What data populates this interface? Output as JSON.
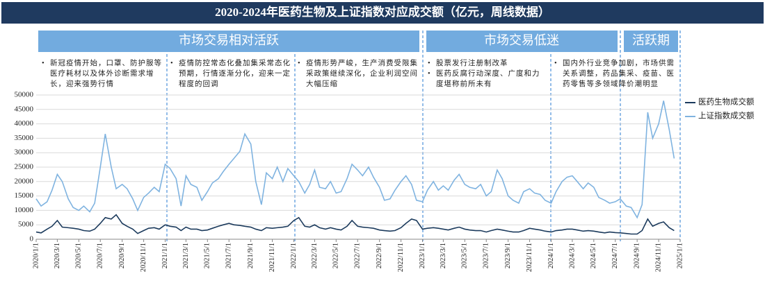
{
  "header": {
    "title": "2020-2024年医药生物及上证指数对应成交额（亿元，周线数据）"
  },
  "phases": [
    {
      "label": "市场交易相对活跃"
    },
    {
      "label": "市场交易低迷"
    },
    {
      "label": "活跃期"
    }
  ],
  "notes": [
    [
      "新冠疫情开始，口罩、防护服等医疗耗材以及体外诊断需求增长，迎来强势行情"
    ],
    [
      "疫情防控常态化叠加集采常态化预期，行情逐渐分化，迎来一定程度的回调"
    ],
    [
      "疫情形势严峻，生产消费受限集采政策继续深化，企业利润空间大幅压缩"
    ],
    [
      "股票发行注册制改革",
      "医药反腐行动深度、广度和力度堪称前所未有"
    ],
    [
      "国内外行业竞争加剧，市场供需关系调整，药品集采、疫苗、医药零售等多领域降价潮明显"
    ]
  ],
  "chart_data": {
    "type": "line",
    "x": [
      "2020/1/1",
      "2020/1/15",
      "2020/2/1",
      "2020/2/15",
      "2020/3/1",
      "2020/3/15",
      "2020/4/1",
      "2020/4/15",
      "2020/5/1",
      "2020/5/15",
      "2020/6/1",
      "2020/6/15",
      "2020/7/1",
      "2020/7/15",
      "2020/8/1",
      "2020/8/15",
      "2020/9/1",
      "2020/9/15",
      "2020/10/1",
      "2020/10/15",
      "2020/11/1",
      "2020/11/15",
      "2020/12/1",
      "2020/12/15",
      "2021/1/1",
      "2021/1/15",
      "2021/2/1",
      "2021/2/15",
      "2021/3/1",
      "2021/3/15",
      "2021/4/1",
      "2021/4/15",
      "2021/5/1",
      "2021/5/15",
      "2021/6/1",
      "2021/6/15",
      "2021/7/1",
      "2021/7/15",
      "2021/8/1",
      "2021/8/15",
      "2021/9/1",
      "2021/9/15",
      "2021/10/1",
      "2021/10/15",
      "2021/11/1",
      "2021/11/15",
      "2021/12/1",
      "2021/12/15",
      "2022/1/1",
      "2022/1/15",
      "2022/2/1",
      "2022/2/15",
      "2022/3/1",
      "2022/3/15",
      "2022/4/1",
      "2022/4/15",
      "2022/5/1",
      "2022/5/15",
      "2022/6/1",
      "2022/6/15",
      "2022/7/1",
      "2022/7/15",
      "2022/8/1",
      "2022/8/15",
      "2022/9/1",
      "2022/9/15",
      "2022/10/1",
      "2022/10/15",
      "2022/11/1",
      "2022/11/15",
      "2022/12/1",
      "2022/12/15",
      "2023/1/1",
      "2023/1/15",
      "2023/2/1",
      "2023/2/15",
      "2023/3/1",
      "2023/3/15",
      "2023/4/1",
      "2023/4/15",
      "2023/5/1",
      "2023/5/15",
      "2023/6/1",
      "2023/6/15",
      "2023/7/1",
      "2023/7/15",
      "2023/8/1",
      "2023/8/15",
      "2023/9/1",
      "2023/9/15",
      "2023/10/1",
      "2023/10/15",
      "2023/11/1",
      "2023/11/15",
      "2023/12/1",
      "2023/12/15",
      "2024/1/1",
      "2024/1/15",
      "2024/2/1",
      "2024/2/15",
      "2024/3/1",
      "2024/3/15",
      "2024/4/1",
      "2024/4/15",
      "2024/5/1",
      "2024/5/15",
      "2024/6/1",
      "2024/6/15",
      "2024/7/1",
      "2024/7/15",
      "2024/8/1",
      "2024/8/15",
      "2024/9/1",
      "2024/9/15",
      "2024/10/1",
      "2024/10/15",
      "2024/11/1",
      "2024/11/15",
      "2024/12/1",
      "2024/12/15"
    ],
    "series": [
      {
        "name": "医药生物成交额",
        "color": "#1b3a5c",
        "values": [
          2500,
          2200,
          3500,
          4500,
          6500,
          4200,
          4000,
          3800,
          3500,
          3000,
          2800,
          3500,
          5500,
          7500,
          7000,
          8500,
          5500,
          4500,
          3500,
          2000,
          3000,
          3800,
          4000,
          3500,
          5000,
          4500,
          4200,
          3000,
          4200,
          3500,
          3500,
          3000,
          3200,
          3800,
          4500,
          5000,
          5500,
          5000,
          4800,
          4500,
          4200,
          3500,
          3000,
          4000,
          3800,
          4000,
          4200,
          4500,
          6500,
          7500,
          4500,
          4200,
          5000,
          4000,
          3500,
          4000,
          3500,
          3200,
          4500,
          6500,
          4500,
          4200,
          4000,
          3800,
          3200,
          3000,
          2800,
          3000,
          4000,
          5500,
          7000,
          6500,
          3500,
          3800,
          4000,
          3800,
          3500,
          3200,
          3800,
          4200,
          3500,
          3200,
          3000,
          3000,
          2500,
          3000,
          3500,
          3200,
          2800,
          2500,
          2500,
          3000,
          3800,
          3500,
          3200,
          2800,
          2500,
          3000,
          3200,
          3500,
          3500,
          3200,
          2800,
          3000,
          2800,
          2500,
          2200,
          2500,
          2300,
          2200,
          2000,
          1800,
          1800,
          3000,
          7000,
          4500,
          5500,
          6000,
          4000,
          3000
        ]
      },
      {
        "name": "上证指数成交额",
        "color": "#7fb3e0",
        "values": [
          14000,
          11500,
          13000,
          17000,
          22500,
          20000,
          14000,
          11000,
          10000,
          11500,
          9500,
          12500,
          25000,
          36500,
          25000,
          17500,
          19000,
          17500,
          14000,
          10000,
          14500,
          16000,
          18000,
          16500,
          26000,
          24500,
          21000,
          11500,
          22000,
          19000,
          18000,
          13500,
          16500,
          19500,
          21000,
          23500,
          26000,
          28000,
          30500,
          36500,
          33000,
          20000,
          12000,
          23000,
          21000,
          25000,
          20000,
          24500,
          22000,
          20000,
          16000,
          19000,
          24000,
          18000,
          17500,
          20000,
          16000,
          16500,
          21000,
          26000,
          24000,
          22000,
          25000,
          21500,
          18000,
          13500,
          14000,
          17000,
          20000,
          22000,
          19000,
          13500,
          13000,
          17000,
          20000,
          17000,
          18500,
          17000,
          20500,
          22500,
          19000,
          18000,
          17500,
          19000,
          15000,
          16500,
          24000,
          21000,
          15000,
          13500,
          12500,
          16500,
          17500,
          16000,
          15500,
          13500,
          12500,
          16500,
          20000,
          21500,
          22000,
          20000,
          17500,
          19500,
          18000,
          14500,
          13500,
          12500,
          13000,
          14000,
          11500,
          11000,
          7500,
          12000,
          44000,
          35000,
          40000,
          48000,
          38000,
          28000
        ]
      }
    ],
    "xlim": [
      "2020/1/1",
      "2025/1/1"
    ],
    "xticks": [
      "2020/1/1",
      "2020/3/1",
      "2020/5/1",
      "2020/7/1",
      "2020/9/1",
      "2020/11/1",
      "2021/1/1",
      "2021/3/1",
      "2021/5/1",
      "2021/7/1",
      "2021/9/1",
      "2021/11/1",
      "2022/1/1",
      "2022/3/1",
      "2022/5/1",
      "2022/7/1",
      "2022/9/1",
      "2022/11/1",
      "2023/1/1",
      "2023/3/1",
      "2023/5/1",
      "2023/7/1",
      "2023/9/1",
      "2023/11/1",
      "2024/1/1",
      "2024/3/1",
      "2024/5/1",
      "2024/7/1",
      "2024/9/1",
      "2024/11/1",
      "2025/1/1"
    ],
    "ylim": [
      0,
      50000
    ],
    "yticks": [
      0,
      5000,
      10000,
      15000,
      20000,
      25000,
      30000,
      35000,
      40000,
      45000,
      50000
    ],
    "grid": true
  }
}
